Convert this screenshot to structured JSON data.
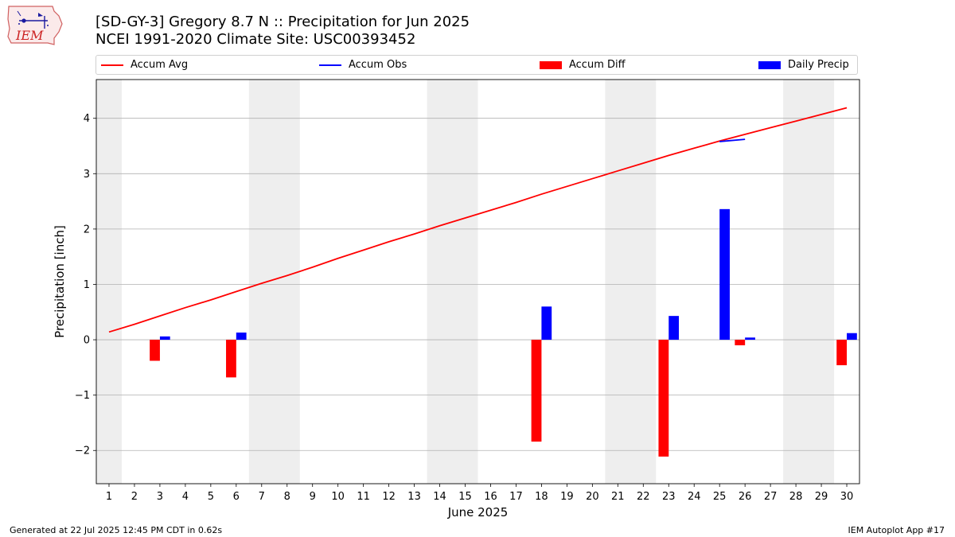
{
  "header": {
    "title_line1": "[SD-GY-3] Gregory 8.7 N :: Precipitation for Jun 2025",
    "title_line2": "NCEI 1991-2020 Climate Site: USC00393452"
  },
  "logo": {
    "text": "IEM",
    "icon": "iem-logo-icon"
  },
  "legend": [
    {
      "label": "Accum Avg",
      "color": "#ff0000",
      "kind": "line"
    },
    {
      "label": "Accum Obs",
      "color": "#0000ff",
      "kind": "line"
    },
    {
      "label": "Accum Diff",
      "color": "#ff0000",
      "kind": "bar"
    },
    {
      "label": "Daily Precip",
      "color": "#0000ff",
      "kind": "bar"
    }
  ],
  "chart_data": {
    "type": "bar",
    "xlabel": "June 2025",
    "ylabel": "Precipitation [inch]",
    "x_days": [
      1,
      2,
      3,
      4,
      5,
      6,
      7,
      8,
      9,
      10,
      11,
      12,
      13,
      14,
      15,
      16,
      17,
      18,
      19,
      20,
      21,
      22,
      23,
      24,
      25,
      26,
      27,
      28,
      29,
      30
    ],
    "xlim": [
      0.5,
      30.5
    ],
    "ylim": [
      -2.6,
      4.7
    ],
    "yticks": [
      -2,
      -1,
      0,
      1,
      2,
      3,
      4
    ],
    "ytick_labels": [
      "−2",
      "−1",
      "0",
      "1",
      "2",
      "3",
      "4"
    ],
    "grid": "horizontal",
    "weekend_shading": [
      [
        0.5,
        1.5
      ],
      [
        6.5,
        8.5
      ],
      [
        13.5,
        15.5
      ],
      [
        20.5,
        22.5
      ],
      [
        27.5,
        29.5
      ]
    ],
    "series": [
      {
        "name": "Accum Avg",
        "type": "line",
        "color": "#ff0000",
        "x": [
          1,
          2,
          3,
          4,
          5,
          6,
          7,
          8,
          9,
          10,
          11,
          12,
          13,
          14,
          15,
          16,
          17,
          18,
          19,
          20,
          21,
          22,
          23,
          24,
          25,
          26,
          27,
          28,
          29,
          30
        ],
        "values": [
          0.14,
          0.28,
          0.43,
          0.58,
          0.72,
          0.87,
          1.02,
          1.16,
          1.31,
          1.47,
          1.62,
          1.77,
          1.91,
          2.06,
          2.2,
          2.34,
          2.48,
          2.63,
          2.77,
          2.91,
          3.05,
          3.19,
          3.33,
          3.46,
          3.59,
          3.71,
          3.83,
          3.95,
          4.07,
          4.19
        ]
      },
      {
        "name": "Accum Obs",
        "type": "line",
        "color": "#0000ff",
        "x": [
          25,
          26
        ],
        "values": [
          3.58,
          3.62
        ]
      },
      {
        "name": "Accum Diff",
        "type": "bar",
        "color": "#ff0000",
        "x": [
          3,
          6,
          18,
          23,
          26,
          30
        ],
        "values": [
          -0.38,
          -0.68,
          -1.84,
          -2.11,
          -0.1,
          -0.46
        ]
      },
      {
        "name": "Daily Precip",
        "type": "bar",
        "color": "#0000ff",
        "x": [
          3,
          6,
          18,
          23,
          25,
          26,
          30
        ],
        "values": [
          0.06,
          0.13,
          0.6,
          0.43,
          2.36,
          0.04,
          0.12
        ]
      }
    ]
  },
  "footer": {
    "left": "Generated at 22 Jul 2025 12:45 PM CDT in 0.62s",
    "right": "IEM Autoplot App #17"
  }
}
